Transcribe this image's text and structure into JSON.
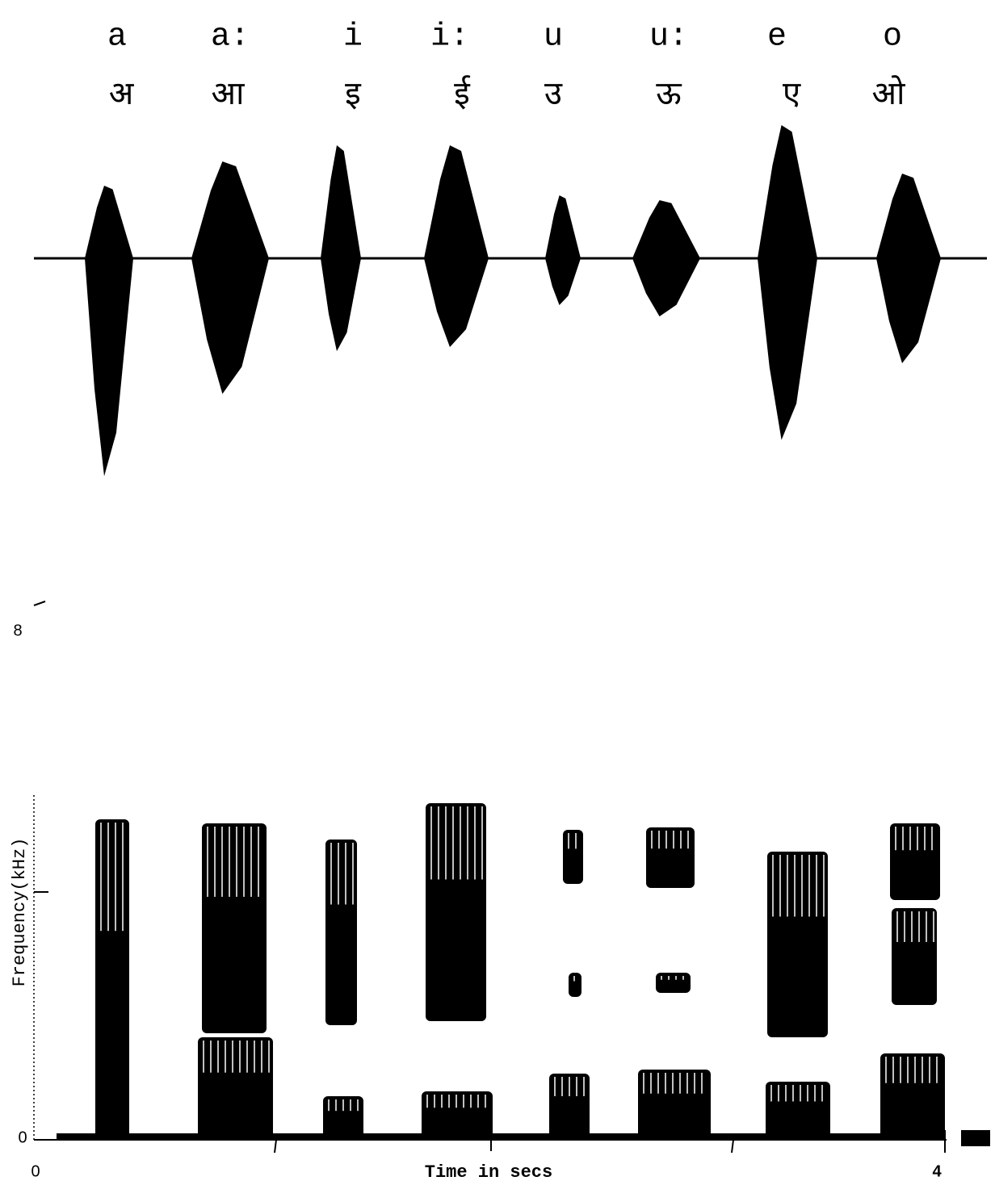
{
  "phonemes": [
    {
      "ipa": "a",
      "devanagari": "अ"
    },
    {
      "ipa": "a:",
      "devanagari": "आ"
    },
    {
      "ipa": "i",
      "devanagari": "इ"
    },
    {
      "ipa": "i:",
      "devanagari": "ई"
    },
    {
      "ipa": "u",
      "devanagari": "उ"
    },
    {
      "ipa": "u:",
      "devanagari": "ऊ"
    },
    {
      "ipa": "e",
      "devanagari": "ए"
    },
    {
      "ipa": "o",
      "devanagari": "ओ"
    }
  ],
  "spectrogram": {
    "y_axis_label": "Frequency(kHz)",
    "y_tick_top": "8",
    "y_tick_bottom": "0",
    "x_axis_label": "Time in secs",
    "x_tick_left": "0",
    "x_tick_right": "4"
  }
}
